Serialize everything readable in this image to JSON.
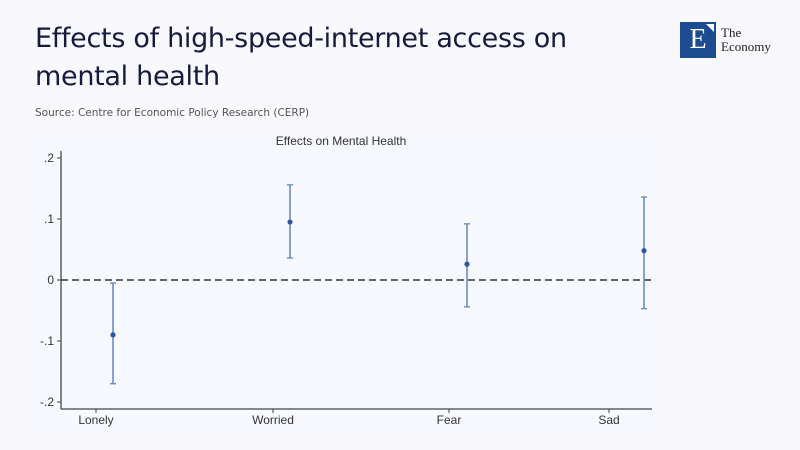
{
  "header": {
    "title": "Effects of high-speed-internet access on mental health",
    "source": "Source: Centre for Economic Policy Research (CERP)"
  },
  "logo": {
    "letter": "E",
    "line1": "The",
    "line2": "Economy",
    "color": "#1d4b8f"
  },
  "chart_data": {
    "type": "errorbar",
    "title": "Effects on Mental Health",
    "xlabel": "",
    "ylabel": "",
    "categories": [
      "Lonely",
      "Worried",
      "Fear",
      "Sad"
    ],
    "values": [
      -0.09,
      0.095,
      0.026,
      0.048
    ],
    "ci_lower": [
      -0.17,
      0.036,
      -0.044,
      -0.047
    ],
    "ci_upper": [
      -0.005,
      0.156,
      0.092,
      0.136
    ],
    "yticks": [
      0.2,
      0.1,
      0,
      -0.1,
      -0.2
    ],
    "ytick_labels": [
      ".2",
      ".1",
      "0",
      "-.1",
      "-.2"
    ],
    "ylim": [
      -0.21,
      0.21
    ],
    "reference_line": 0,
    "point_color": "#2f56a0",
    "bar_color": "#6b8cc7",
    "grid": false
  }
}
